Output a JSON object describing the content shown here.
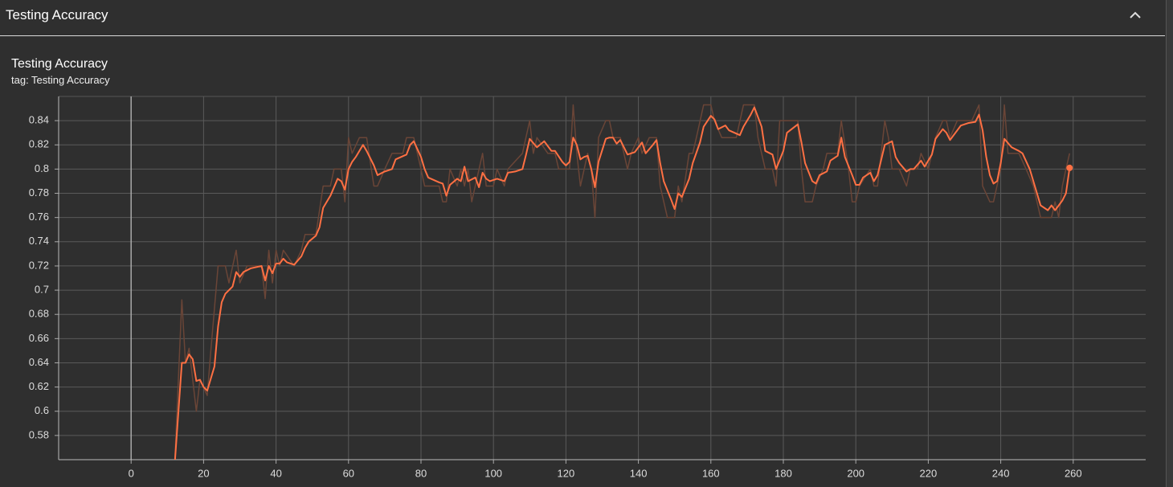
{
  "header": {
    "title": "Testing Accuracy"
  },
  "chart_data": {
    "type": "line",
    "title": "Testing Accuracy",
    "subtitle": "tag: Testing Accuracy",
    "xlim": [
      -20,
      280
    ],
    "xticks": [
      0,
      20,
      40,
      60,
      80,
      100,
      120,
      140,
      160,
      180,
      200,
      220,
      240,
      260
    ],
    "ylim": [
      0.56,
      0.86
    ],
    "yticks": [
      0.58,
      0.6,
      0.62,
      0.64,
      0.66,
      0.68,
      0.7,
      0.72,
      0.74,
      0.76,
      0.78,
      0.8,
      0.82,
      0.84
    ],
    "grid": true,
    "series": [
      {
        "color": "#6a4537",
        "x": [
          12,
          14,
          15,
          16,
          18,
          19,
          21,
          22,
          24,
          26,
          27,
          29,
          30,
          32,
          36,
          37,
          38,
          39,
          40,
          41,
          42,
          45,
          47,
          48,
          51,
          53,
          55,
          56,
          58,
          59,
          60,
          61,
          63,
          65,
          67,
          68,
          70,
          72,
          75,
          76,
          78,
          80,
          81,
          85,
          86,
          87,
          88,
          90,
          91,
          92,
          93,
          94,
          97,
          98,
          100,
          101,
          103,
          104,
          108,
          110,
          111,
          112,
          115,
          117,
          118,
          121,
          122,
          123,
          124,
          126,
          127,
          128,
          129,
          131,
          132,
          133,
          135,
          137,
          138,
          140,
          141,
          143,
          145,
          146,
          148,
          150,
          151,
          152,
          154,
          155,
          156,
          158,
          160,
          161,
          163,
          167,
          169,
          172,
          173,
          175,
          177,
          178,
          179,
          182,
          184,
          185,
          186,
          188,
          189,
          191,
          192,
          195,
          196,
          198,
          199,
          200,
          201,
          204,
          205,
          206,
          208,
          209,
          210,
          212,
          214,
          215,
          217,
          218,
          220,
          222,
          224,
          225,
          226,
          228,
          232,
          234,
          235,
          237,
          238,
          240,
          241,
          242,
          245,
          247,
          249,
          250,
          251,
          254,
          255,
          256,
          257,
          258,
          259
        ],
        "values": [
          0.555,
          0.692,
          0.64,
          0.652,
          0.6,
          0.626,
          0.613,
          0.65,
          0.72,
          0.72,
          0.706,
          0.733,
          0.706,
          0.72,
          0.72,
          0.693,
          0.733,
          0.706,
          0.733,
          0.72,
          0.733,
          0.72,
          0.733,
          0.746,
          0.746,
          0.786,
          0.786,
          0.8,
          0.8,
          0.773,
          0.826,
          0.813,
          0.826,
          0.826,
          0.786,
          0.786,
          0.8,
          0.813,
          0.813,
          0.826,
          0.826,
          0.8,
          0.786,
          0.786,
          0.773,
          0.773,
          0.8,
          0.786,
          0.8,
          0.786,
          0.8,
          0.773,
          0.813,
          0.786,
          0.786,
          0.8,
          0.786,
          0.8,
          0.813,
          0.84,
          0.813,
          0.826,
          0.813,
          0.813,
          0.8,
          0.8,
          0.853,
          0.813,
          0.786,
          0.813,
          0.8,
          0.76,
          0.826,
          0.84,
          0.84,
          0.826,
          0.826,
          0.8,
          0.813,
          0.826,
          0.813,
          0.826,
          0.826,
          0.786,
          0.76,
          0.76,
          0.786,
          0.773,
          0.813,
          0.813,
          0.826,
          0.853,
          0.853,
          0.84,
          0.826,
          0.826,
          0.853,
          0.853,
          0.826,
          0.8,
          0.8,
          0.786,
          0.84,
          0.84,
          0.84,
          0.8,
          0.773,
          0.773,
          0.786,
          0.8,
          0.813,
          0.813,
          0.84,
          0.8,
          0.773,
          0.773,
          0.786,
          0.8,
          0.786,
          0.786,
          0.84,
          0.826,
          0.8,
          0.8,
          0.786,
          0.8,
          0.8,
          0.813,
          0.8,
          0.826,
          0.84,
          0.84,
          0.826,
          0.84,
          0.84,
          0.853,
          0.786,
          0.773,
          0.773,
          0.8,
          0.853,
          0.813,
          0.813,
          0.8,
          0.786,
          0.773,
          0.76,
          0.76,
          0.773,
          0.76,
          0.786,
          0.8,
          0.813
        ]
      },
      {
        "color": "#ff7043",
        "x": [
          12,
          14,
          15,
          16,
          17,
          18,
          19,
          20,
          21,
          23,
          24,
          25,
          26,
          28,
          29,
          30,
          31,
          33,
          36,
          37,
          38,
          39,
          40,
          41,
          42,
          43,
          45,
          47,
          48,
          49,
          51,
          52,
          53,
          55,
          57,
          58,
          59,
          60,
          61,
          62,
          64,
          65,
          67,
          68,
          70,
          72,
          73,
          76,
          77,
          78,
          80,
          81,
          82,
          85,
          86,
          87,
          88,
          90,
          91,
          92,
          93,
          95,
          96,
          97,
          98,
          99,
          101,
          103,
          104,
          106,
          108,
          109,
          110,
          112,
          114,
          116,
          117,
          119,
          120,
          121,
          122,
          123,
          124,
          125,
          126,
          127,
          128,
          129,
          131,
          132,
          133,
          134,
          135,
          137,
          139,
          141,
          142,
          144,
          145,
          146,
          147,
          149,
          150,
          151,
          152,
          154,
          155,
          157,
          158,
          160,
          161,
          162,
          164,
          165,
          168,
          169,
          171,
          172,
          174,
          175,
          177,
          178,
          180,
          181,
          184,
          185,
          186,
          188,
          189,
          190,
          192,
          193,
          195,
          196,
          197,
          199,
          200,
          201,
          202,
          204,
          205,
          206,
          208,
          210,
          211,
          212,
          214,
          215,
          216,
          218,
          219,
          221,
          222,
          224,
          225,
          226,
          228,
          229,
          231,
          233,
          234,
          235,
          236,
          237,
          238,
          239,
          240,
          241,
          243,
          245,
          246,
          248,
          250,
          251,
          253,
          254,
          255,
          257,
          258,
          259
        ],
        "values": [
          0.555,
          0.64,
          0.64,
          0.647,
          0.643,
          0.625,
          0.626,
          0.62,
          0.617,
          0.637,
          0.67,
          0.69,
          0.697,
          0.703,
          0.715,
          0.711,
          0.715,
          0.718,
          0.72,
          0.708,
          0.72,
          0.714,
          0.722,
          0.722,
          0.726,
          0.723,
          0.721,
          0.728,
          0.735,
          0.74,
          0.745,
          0.752,
          0.768,
          0.778,
          0.792,
          0.79,
          0.783,
          0.8,
          0.806,
          0.81,
          0.82,
          0.815,
          0.803,
          0.795,
          0.798,
          0.8,
          0.808,
          0.812,
          0.82,
          0.823,
          0.81,
          0.8,
          0.793,
          0.789,
          0.788,
          0.778,
          0.787,
          0.792,
          0.79,
          0.802,
          0.79,
          0.793,
          0.785,
          0.797,
          0.792,
          0.79,
          0.792,
          0.79,
          0.797,
          0.798,
          0.8,
          0.812,
          0.825,
          0.818,
          0.823,
          0.815,
          0.815,
          0.806,
          0.803,
          0.806,
          0.826,
          0.82,
          0.808,
          0.81,
          0.811,
          0.8,
          0.785,
          0.806,
          0.825,
          0.826,
          0.826,
          0.821,
          0.824,
          0.812,
          0.814,
          0.822,
          0.813,
          0.82,
          0.824,
          0.805,
          0.79,
          0.775,
          0.767,
          0.78,
          0.777,
          0.792,
          0.805,
          0.822,
          0.835,
          0.844,
          0.841,
          0.833,
          0.836,
          0.832,
          0.828,
          0.835,
          0.845,
          0.851,
          0.835,
          0.815,
          0.812,
          0.8,
          0.815,
          0.83,
          0.837,
          0.822,
          0.805,
          0.79,
          0.788,
          0.795,
          0.798,
          0.807,
          0.811,
          0.826,
          0.81,
          0.795,
          0.787,
          0.787,
          0.793,
          0.797,
          0.79,
          0.795,
          0.82,
          0.823,
          0.81,
          0.805,
          0.798,
          0.8,
          0.8,
          0.807,
          0.802,
          0.812,
          0.825,
          0.833,
          0.83,
          0.824,
          0.832,
          0.836,
          0.838,
          0.839,
          0.845,
          0.832,
          0.81,
          0.795,
          0.788,
          0.79,
          0.805,
          0.825,
          0.818,
          0.815,
          0.813,
          0.8,
          0.78,
          0.77,
          0.766,
          0.77,
          0.766,
          0.774,
          0.78,
          0.801
        ]
      }
    ]
  }
}
